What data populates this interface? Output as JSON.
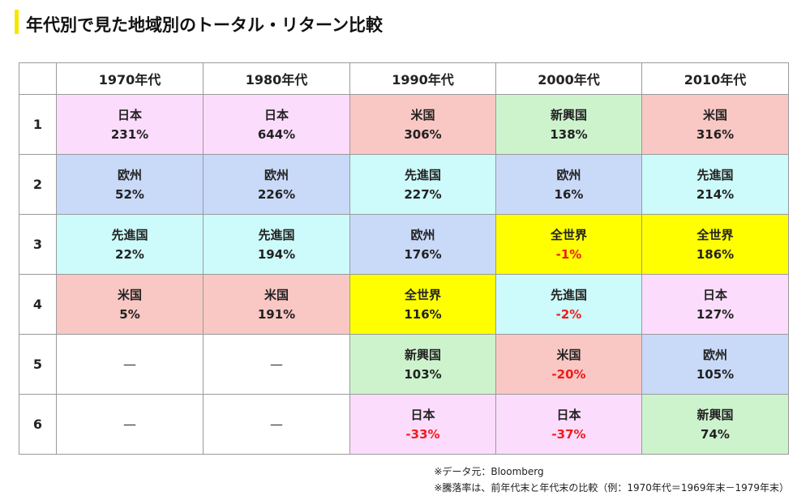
{
  "title": "年代別で見た地域別のトータル・リターン比較",
  "chart_data": {
    "type": "table",
    "columns": [
      "",
      "1970年代",
      "1980年代",
      "1990年代",
      "2000年代",
      "2010年代"
    ],
    "rows": [
      {
        "rank": "1",
        "cells": [
          {
            "region": "日本",
            "value": "231%",
            "color": "#fcdcfd"
          },
          {
            "region": "日本",
            "value": "644%",
            "color": "#fcdcfd"
          },
          {
            "region": "米国",
            "value": "306%",
            "color": "#f9c8c4"
          },
          {
            "region": "新興国",
            "value": "138%",
            "color": "#cdf3cd"
          },
          {
            "region": "米国",
            "value": "316%",
            "color": "#f9c8c4"
          }
        ]
      },
      {
        "rank": "2",
        "cells": [
          {
            "region": "欧州",
            "value": "52%",
            "color": "#c9d9f8"
          },
          {
            "region": "欧州",
            "value": "226%",
            "color": "#c9d9f8"
          },
          {
            "region": "先進国",
            "value": "227%",
            "color": "#cdfafa"
          },
          {
            "region": "欧州",
            "value": "16%",
            "color": "#c9d9f8"
          },
          {
            "region": "先進国",
            "value": "214%",
            "color": "#cdfafa"
          }
        ]
      },
      {
        "rank": "3",
        "cells": [
          {
            "region": "先進国",
            "value": "22%",
            "color": "#cdfafa"
          },
          {
            "region": "先進国",
            "value": "194%",
            "color": "#cdfafa"
          },
          {
            "region": "欧州",
            "value": "176%",
            "color": "#c9d9f8"
          },
          {
            "region": "全世界",
            "value": "-1%",
            "color": "#ffff00"
          },
          {
            "region": "全世界",
            "value": "186%",
            "color": "#ffff00"
          }
        ]
      },
      {
        "rank": "4",
        "cells": [
          {
            "region": "米国",
            "value": "5%",
            "color": "#f9c8c4"
          },
          {
            "region": "米国",
            "value": "191%",
            "color": "#f9c8c4"
          },
          {
            "region": "全世界",
            "value": "116%",
            "color": "#ffff00"
          },
          {
            "region": "先進国",
            "value": "-2%",
            "color": "#cdfafa"
          },
          {
            "region": "日本",
            "value": "127%",
            "color": "#fcdcfd"
          }
        ]
      },
      {
        "rank": "5",
        "cells": [
          {
            "region": "",
            "value": "—",
            "color": "#ffffff"
          },
          {
            "region": "",
            "value": "—",
            "color": "#ffffff"
          },
          {
            "region": "新興国",
            "value": "103%",
            "color": "#cdf3cd"
          },
          {
            "region": "米国",
            "value": "-20%",
            "color": "#f9c8c4"
          },
          {
            "region": "欧州",
            "value": "105%",
            "color": "#c9d9f8"
          }
        ]
      },
      {
        "rank": "6",
        "cells": [
          {
            "region": "",
            "value": "—",
            "color": "#ffffff"
          },
          {
            "region": "",
            "value": "—",
            "color": "#ffffff"
          },
          {
            "region": "日本",
            "value": "-33%",
            "color": "#fcdcfd"
          },
          {
            "region": "日本",
            "value": "-37%",
            "color": "#fcdcfd"
          },
          {
            "region": "新興国",
            "value": "74%",
            "color": "#cdf3cd"
          }
        ]
      }
    ]
  },
  "notes": [
    "※データ元：Bloomberg",
    "※騰落率は、前年代末と年代末の比較（例：1970年代＝1969年末－1979年末）"
  ],
  "colors": {
    "accent": "#f7e600",
    "negative": "#ee1c1c"
  }
}
